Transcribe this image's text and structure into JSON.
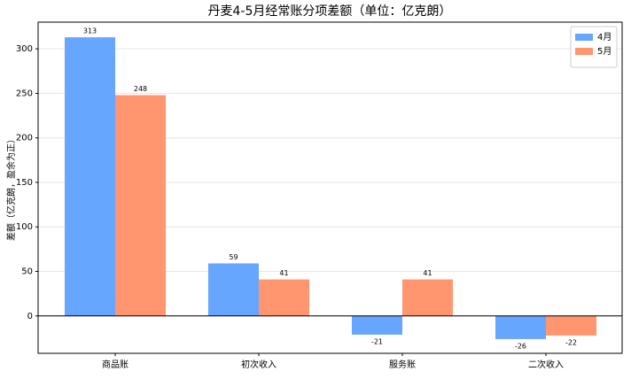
{
  "chart_data": {
    "type": "bar",
    "title": "丹麦4-5月经常账分项差额（单位：亿克朗）",
    "y_label": "差额（亿克朗，盈余为正）",
    "categories": [
      "商品账",
      "初次收入",
      "服务账",
      "二次收入"
    ],
    "series": [
      {
        "name": "4月",
        "color": "#66a6ff",
        "values": [
          313,
          59,
          -21,
          -26
        ]
      },
      {
        "name": "5月",
        "color": "#ff9670",
        "values": [
          248,
          41,
          41,
          -22
        ]
      }
    ],
    "ylim": [
      -42,
      330
    ],
    "yticks": [
      0,
      50,
      100,
      150,
      200,
      250,
      300
    ],
    "grid": true,
    "legend": "upper right",
    "data_labels": true
  }
}
